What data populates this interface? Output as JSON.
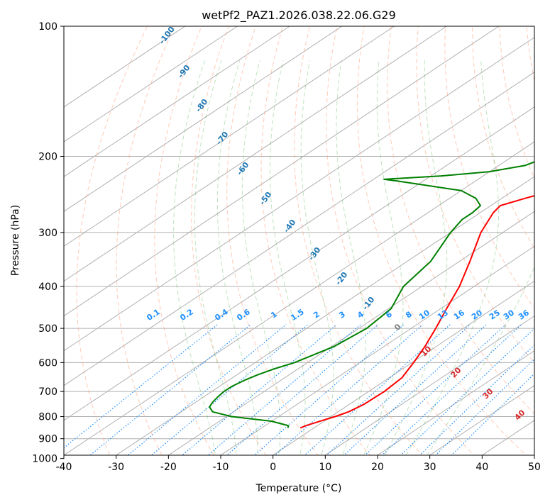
{
  "chart_data": {
    "type": "skew-t",
    "title": "wetPf2_PAZ1.2026.038.22.06.G29",
    "xlabel": "Temperature (°C)",
    "ylabel": "Pressure (hPa)",
    "xlim": [
      -40,
      50
    ],
    "ylim": [
      1050,
      100
    ],
    "x_ticks": [
      -40,
      -30,
      -20,
      -10,
      0,
      10,
      20,
      30,
      40,
      50
    ],
    "y_ticks": [
      1000,
      900,
      800,
      700,
      600,
      500,
      400,
      300,
      200,
      100
    ],
    "series": [
      {
        "name": "Temperature",
        "color": "#ff0000",
        "points": [
          [
            850,
            -2.6
          ],
          [
            840,
            -2.2
          ],
          [
            820,
            -0.8
          ],
          [
            800,
            0.8
          ],
          [
            780,
            2.0
          ],
          [
            750,
            2.8
          ],
          [
            700,
            3.0
          ],
          [
            650,
            2.4
          ],
          [
            600,
            0.3
          ],
          [
            550,
            -2.2
          ],
          [
            500,
            -5.3
          ],
          [
            450,
            -8.9
          ],
          [
            400,
            -12.8
          ],
          [
            350,
            -18.0
          ],
          [
            300,
            -24.2
          ],
          [
            270,
            -27.5
          ],
          [
            260,
            -28.2
          ],
          [
            250,
            -25.5
          ],
          [
            240,
            -22.5
          ],
          [
            230,
            -20.0
          ],
          [
            220,
            -18.0
          ],
          [
            210,
            -16.8
          ],
          [
            200,
            -16.0
          ],
          [
            180,
            -14.5
          ],
          [
            160,
            -13.0
          ],
          [
            140,
            -12.0
          ],
          [
            130,
            -11.3
          ],
          [
            120,
            -10.0
          ],
          [
            110,
            -8.5
          ],
          [
            100,
            -7.5
          ]
        ]
      },
      {
        "name": "Dewpoint",
        "color": "#008000",
        "points": [
          [
            850,
            -5.0
          ],
          [
            840,
            -5.5
          ],
          [
            820,
            -10.0
          ],
          [
            800,
            -19.0
          ],
          [
            780,
            -24.0
          ],
          [
            760,
            -26.0
          ],
          [
            740,
            -26.8
          ],
          [
            720,
            -27.3
          ],
          [
            700,
            -27.7
          ],
          [
            680,
            -27.6
          ],
          [
            660,
            -27.0
          ],
          [
            640,
            -26.0
          ],
          [
            620,
            -24.5
          ],
          [
            600,
            -22.5
          ],
          [
            550,
            -19.5
          ],
          [
            500,
            -18.5
          ],
          [
            450,
            -19.5
          ],
          [
            400,
            -23.5
          ],
          [
            350,
            -25.5
          ],
          [
            300,
            -30.0
          ],
          [
            280,
            -31.5
          ],
          [
            270,
            -31.5
          ],
          [
            260,
            -32.0
          ],
          [
            250,
            -35.0
          ],
          [
            240,
            -40.0
          ],
          [
            232,
            -50.0
          ],
          [
            228,
            -55.0
          ],
          [
            226,
            -58.0
          ],
          [
            222,
            -48.0
          ],
          [
            217,
            -40.0
          ],
          [
            210,
            -35.0
          ],
          [
            200,
            -33.0
          ],
          [
            190,
            -32.3
          ],
          [
            180,
            -33.0
          ],
          [
            170,
            -34.5
          ],
          [
            160,
            -37.0
          ],
          [
            150,
            -41.0
          ],
          [
            140,
            -45.0
          ],
          [
            120,
            -55.0
          ],
          [
            110,
            -60.0
          ],
          [
            100,
            -65.0
          ]
        ]
      }
    ],
    "isotherm_labels": [
      "-100",
      "-90",
      "-80",
      "-70",
      "-60",
      "-50",
      "-40",
      "-30",
      "-20",
      "-10"
    ],
    "mixing_ratio_labels": [
      "0.1",
      "0.2",
      "0.4",
      "0.6",
      "1",
      "1.5",
      "2",
      "3",
      "4",
      "6",
      "8",
      "10",
      "13",
      "16",
      "20",
      "25",
      "30",
      "36"
    ],
    "isotherm_red_labels": [
      "0",
      "10",
      "20",
      "30",
      "40"
    ]
  }
}
